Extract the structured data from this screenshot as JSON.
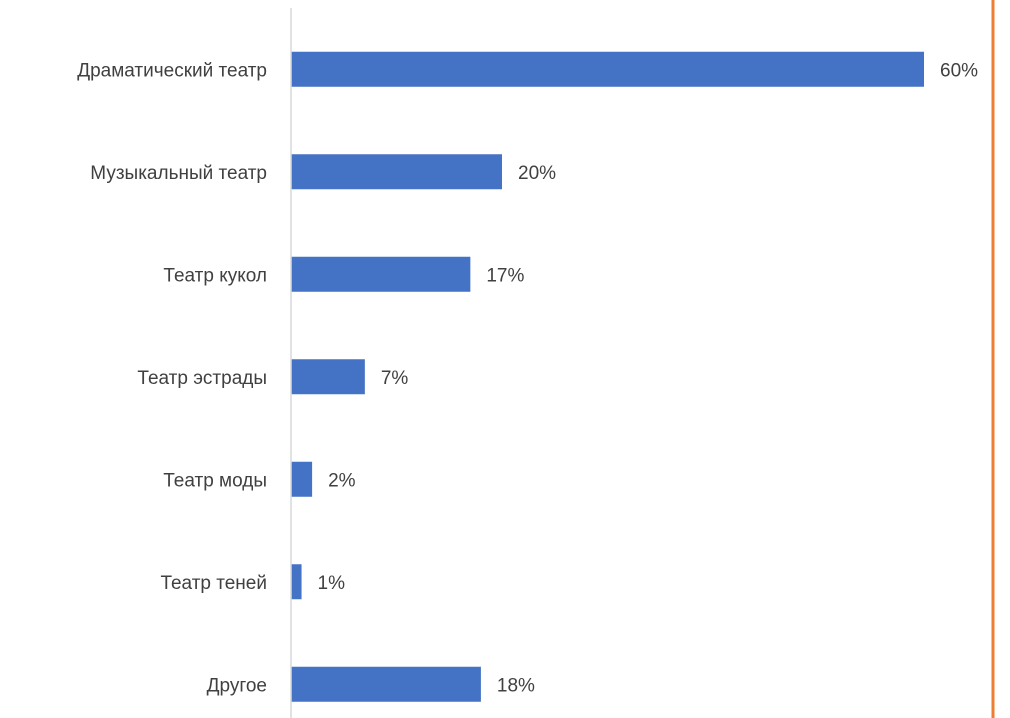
{
  "chart_data": {
    "type": "bar",
    "orientation": "horizontal",
    "categories": [
      "Драматический театр",
      "Музыкальный театр",
      "Театр кукол",
      "Театр эстрады",
      "Театр моды",
      "Театр теней",
      "Другое"
    ],
    "values": [
      60,
      20,
      17,
      7,
      2,
      1,
      18
    ],
    "value_labels": [
      "60%",
      "20%",
      "17%",
      "7%",
      "2%",
      "1%",
      "18%"
    ],
    "unit": "%",
    "xlim": [
      0,
      60
    ],
    "grid": false,
    "legend": "none",
    "title": "",
    "xlabel": "",
    "ylabel": ""
  },
  "colors": {
    "bar": "#4472c4",
    "axis": "#d9d9d9",
    "text": "#404040",
    "border_accent": "#ed7d31"
  }
}
